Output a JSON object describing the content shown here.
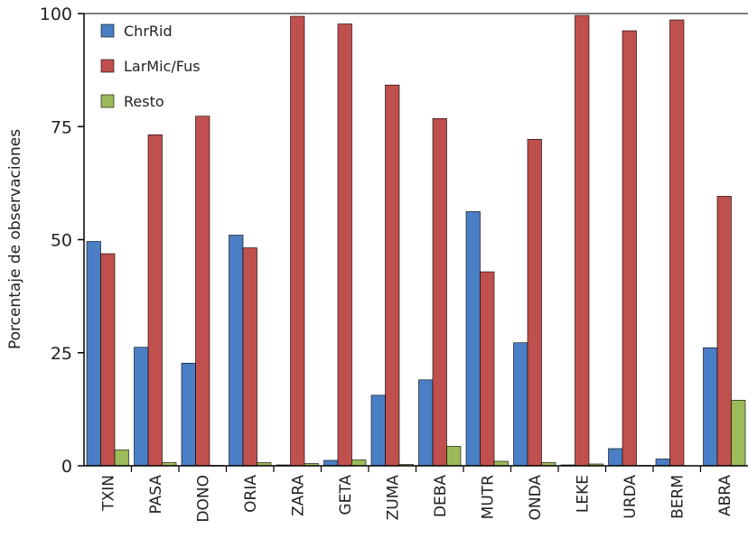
{
  "chart_data": {
    "type": "bar",
    "ylabel": "Porcentaje de observaciones",
    "ylim": [
      0,
      100
    ],
    "yticks": [
      0,
      25,
      50,
      75,
      100
    ],
    "categories": [
      "TXIN",
      "PASA",
      "DONO",
      "ORIA",
      "ZARA",
      "GETA",
      "ZUMA",
      "DEBA",
      "MUTR",
      "ONDA",
      "LEKE",
      "URDA",
      "BERM",
      "ABRA"
    ],
    "series": [
      {
        "name": "ChrRid",
        "color": "#4a7fc6",
        "values": [
          49.6,
          26.2,
          22.7,
          51.0,
          0.2,
          1.2,
          15.6,
          19.0,
          56.2,
          27.2,
          0.2,
          3.8,
          1.5,
          26.1
        ]
      },
      {
        "name": "LarMic/Fus",
        "color": "#c0504d",
        "values": [
          46.9,
          73.2,
          77.3,
          48.2,
          99.4,
          97.7,
          84.2,
          76.8,
          42.9,
          72.2,
          99.6,
          96.2,
          98.6,
          59.6
        ]
      },
      {
        "name": "Resto",
        "color": "#9bbb59",
        "values": [
          3.5,
          0.7,
          0.1,
          0.7,
          0.5,
          1.3,
          0.3,
          4.3,
          1.0,
          0.7,
          0.4,
          0.1,
          0.0,
          14.5
        ]
      }
    ],
    "legend_position": "top-left",
    "grid": false
  }
}
